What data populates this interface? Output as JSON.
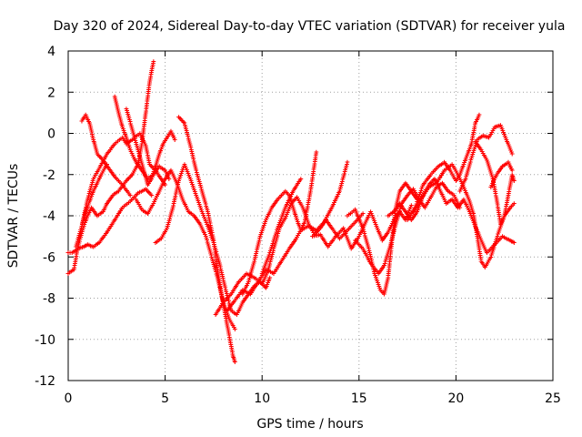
{
  "chart_data": {
    "type": "scatter",
    "title": "Day 320 of 2024, Sidereal Day-to-day VTEC variation (SDTVAR) for receiver yula",
    "xlabel": "GPS time / hours",
    "ylabel": "SDTVAR / TECUs",
    "xlim": [
      0,
      25
    ],
    "ylim": [
      -12,
      4
    ],
    "xticks": [
      0,
      5,
      10,
      15,
      20,
      25
    ],
    "yticks": [
      -12,
      -10,
      -8,
      -6,
      -4,
      -2,
      0,
      2,
      4
    ],
    "grid": true,
    "marker": "+",
    "marker_color": "#ff0000",
    "series": [
      {
        "name": "trace-1",
        "x": [
          0.0,
          0.2,
          0.5,
          0.8,
          1.0,
          1.3,
          1.6,
          2.0,
          2.4,
          2.8,
          3.2,
          3.6,
          4.0,
          4.3
        ],
        "y": [
          -5.8,
          -5.8,
          -5.6,
          -5.5,
          -5.4,
          -5.5,
          -5.3,
          -4.8,
          -4.2,
          -3.6,
          -3.3,
          -2.9,
          -2.7,
          -3.0
        ]
      },
      {
        "name": "trace-2",
        "x": [
          0.0,
          0.3,
          0.5,
          0.7,
          0.9,
          1.1,
          1.3,
          1.5,
          1.7,
          2.0
        ],
        "y": [
          -6.8,
          -6.6,
          -5.5,
          -4.5,
          -3.8,
          -3.3,
          -2.8,
          -2.4,
          -2.0,
          -1.5
        ]
      },
      {
        "name": "trace-3",
        "x": [
          0.7,
          0.9,
          1.1,
          1.3,
          1.5,
          1.8,
          2.1,
          2.4,
          2.8,
          3.2
        ],
        "y": [
          0.6,
          0.9,
          0.5,
          -0.3,
          -1.0,
          -1.3,
          -1.7,
          -2.1,
          -2.5,
          -3.0
        ]
      },
      {
        "name": "trace-4",
        "x": [
          0.5,
          0.8,
          1.0,
          1.2,
          1.5,
          1.8,
          2.0,
          2.3,
          2.6,
          3.0,
          3.3,
          3.6,
          3.8,
          4.0,
          4.2,
          4.4
        ],
        "y": [
          -5.5,
          -4.5,
          -4.0,
          -3.6,
          -4.0,
          -3.8,
          -3.4,
          -3.0,
          -2.8,
          -2.3,
          -2.0,
          -1.5,
          -0.5,
          1.0,
          2.5,
          3.5
        ]
      },
      {
        "name": "trace-5",
        "x": [
          0.4,
          0.7,
          1.0,
          1.3,
          1.6,
          2.0,
          2.4,
          2.8,
          3.0,
          3.3,
          3.7,
          4.0,
          4.2,
          4.5,
          4.8,
          5.0
        ],
        "y": [
          -5.5,
          -4.5,
          -3.2,
          -2.2,
          -1.7,
          -1.0,
          -0.5,
          -0.2,
          -0.5,
          -0.3,
          0.0,
          -0.6,
          -1.5,
          -1.8,
          -2.2,
          -2.5
        ]
      },
      {
        "name": "trace-6",
        "x": [
          2.4,
          2.6,
          2.8,
          3.0,
          3.2,
          3.5,
          3.8,
          4.1,
          4.4,
          4.7,
          5.0,
          5.2
        ],
        "y": [
          1.8,
          1.0,
          0.3,
          -0.2,
          -0.8,
          -1.4,
          -1.8,
          -2.2,
          -2.0,
          -1.6,
          -1.8,
          -2.2
        ]
      },
      {
        "name": "trace-7",
        "x": [
          3.0,
          3.3,
          3.6,
          3.9,
          4.1,
          4.3,
          4.5,
          4.7,
          4.9,
          5.1,
          5.3,
          5.5
        ],
        "y": [
          1.2,
          0.2,
          -0.8,
          -1.8,
          -2.5,
          -2.2,
          -1.6,
          -1.0,
          -0.5,
          -0.2,
          0.1,
          -0.3
        ]
      },
      {
        "name": "trace-8",
        "x": [
          3.5,
          3.8,
          4.1,
          4.4,
          4.7,
          5.0,
          5.3,
          5.6,
          5.9,
          6.2,
          6.5,
          6.8,
          7.1,
          7.4,
          7.7,
          8.0,
          8.3,
          8.6
        ],
        "y": [
          -3.2,
          -3.7,
          -3.9,
          -3.4,
          -2.8,
          -2.2,
          -1.8,
          -2.4,
          -3.2,
          -3.8,
          -4.0,
          -4.4,
          -5.0,
          -6.0,
          -7.0,
          -8.2,
          -9.0,
          -9.5
        ]
      },
      {
        "name": "trace-9",
        "x": [
          4.5,
          4.8,
          5.1,
          5.4,
          5.7,
          6.0,
          6.3,
          6.6,
          6.9,
          7.2,
          7.5,
          7.8,
          8.1,
          8.4,
          8.7,
          9.0,
          9.3,
          9.6,
          9.9,
          10.2,
          10.4
        ],
        "y": [
          -5.3,
          -5.1,
          -4.6,
          -3.6,
          -2.3,
          -1.5,
          -2.2,
          -3.0,
          -3.8,
          -4.5,
          -5.3,
          -6.3,
          -7.5,
          -8.6,
          -8.8,
          -8.2,
          -7.8,
          -7.4,
          -7.2,
          -7.5,
          -7.0
        ]
      },
      {
        "name": "trace-10",
        "x": [
          5.7,
          6.0,
          6.3,
          6.6,
          6.9,
          7.2,
          7.5,
          7.7,
          7.9,
          8.1,
          8.3,
          8.5,
          8.6
        ],
        "y": [
          0.8,
          0.5,
          -0.6,
          -1.8,
          -2.8,
          -3.8,
          -5.2,
          -6.6,
          -7.8,
          -8.8,
          -9.8,
          -10.8,
          -11.1
        ]
      },
      {
        "name": "trace-11",
        "x": [
          7.6,
          8.0,
          8.4,
          8.8,
          9.2,
          9.6,
          10.0,
          10.3,
          10.6,
          10.9,
          11.2,
          11.5,
          11.8,
          12.1,
          12.4,
          12.7,
          13.0,
          13.3,
          13.6,
          14.0,
          14.4,
          14.8,
          15.2
        ],
        "y": [
          -8.8,
          -8.2,
          -7.8,
          -7.2,
          -6.8,
          -7.0,
          -7.3,
          -6.7,
          -5.6,
          -4.6,
          -4.1,
          -3.4,
          -3.1,
          -3.6,
          -4.4,
          -4.9,
          -4.6,
          -4.2,
          -4.6,
          -5.1,
          -4.7,
          -4.3,
          -3.9
        ]
      },
      {
        "name": "trace-12",
        "x": [
          8.2,
          8.6,
          9.0,
          9.4,
          9.8,
          10.2,
          10.6,
          11.0,
          11.4,
          11.7,
          12.0,
          12.4,
          12.8,
          13.2,
          13.6,
          14.0,
          14.4
        ],
        "y": [
          -8.6,
          -8.1,
          -7.6,
          -7.8,
          -7.2,
          -6.6,
          -6.8,
          -6.2,
          -5.6,
          -5.2,
          -4.7,
          -4.5,
          -4.7,
          -4.3,
          -3.6,
          -2.8,
          -1.4
        ]
      },
      {
        "name": "trace-13",
        "x": [
          9.0,
          9.3,
          9.6,
          9.9,
          10.2,
          10.5,
          10.8,
          11.0,
          11.2,
          11.4,
          11.6,
          11.8,
          12.0,
          12.2,
          12.5,
          12.8
        ],
        "y": [
          -7.8,
          -7.2,
          -6.2,
          -5.0,
          -4.2,
          -3.6,
          -3.2,
          -3.0,
          -2.8,
          -3.0,
          -3.6,
          -4.2,
          -4.7,
          -4.3,
          -2.8,
          -0.9
        ]
      },
      {
        "name": "trace-14",
        "x": [
          10.0,
          10.4,
          10.8,
          11.2,
          11.6,
          12.0
        ],
        "y": [
          -6.8,
          -5.8,
          -4.6,
          -3.6,
          -2.8,
          -2.2
        ]
      },
      {
        "name": "trace-15",
        "x": [
          12.6,
          13.0,
          13.4,
          13.8,
          14.2,
          14.6,
          15.0,
          15.3,
          15.6,
          15.9,
          16.2,
          16.5,
          16.8,
          17.1,
          17.4,
          17.7
        ],
        "y": [
          -5.0,
          -4.9,
          -5.5,
          -5.0,
          -4.6,
          -5.6,
          -5.0,
          -4.4,
          -3.8,
          -4.5,
          -5.2,
          -4.8,
          -4.2,
          -3.8,
          -4.2,
          -3.5
        ]
      },
      {
        "name": "trace-16",
        "x": [
          14.4,
          14.8,
          15.2,
          15.5,
          15.8,
          16.1,
          16.3,
          16.5,
          16.7,
          16.9,
          17.1,
          17.4,
          17.7,
          18.0
        ],
        "y": [
          -4.0,
          -3.7,
          -4.6,
          -5.6,
          -6.8,
          -7.6,
          -7.8,
          -7.0,
          -5.2,
          -3.6,
          -2.8,
          -2.4,
          -2.8,
          -3.2
        ]
      },
      {
        "name": "trace-17",
        "x": [
          14.8,
          15.2,
          15.6,
          16.0,
          16.3,
          16.6,
          16.9,
          17.2,
          17.5,
          17.8,
          18.1,
          18.4,
          18.7,
          19.0,
          19.3,
          19.6,
          19.9,
          20.2
        ],
        "y": [
          -5.2,
          -5.6,
          -6.3,
          -6.8,
          -6.4,
          -5.5,
          -4.4,
          -3.4,
          -3.0,
          -2.7,
          -3.2,
          -3.6,
          -3.1,
          -2.6,
          -2.4,
          -2.8,
          -3.0,
          -3.6
        ]
      },
      {
        "name": "trace-18",
        "x": [
          16.5,
          16.8,
          17.1,
          17.4,
          17.7,
          18.0,
          18.3,
          18.6,
          18.9,
          19.2,
          19.5,
          19.8,
          20.1,
          20.4,
          20.7,
          21.0,
          21.3,
          21.6,
          22.0,
          22.4,
          22.8,
          23.0
        ],
        "y": [
          -4.0,
          -3.8,
          -3.4,
          -3.8,
          -4.2,
          -3.8,
          -3.0,
          -2.5,
          -2.2,
          -2.8,
          -3.4,
          -3.2,
          -3.6,
          -3.2,
          -3.8,
          -4.5,
          -5.2,
          -5.8,
          -5.4,
          -5.0,
          -5.2,
          -5.3
        ]
      },
      {
        "name": "trace-19",
        "x": [
          17.8,
          18.2,
          18.6,
          19.0,
          19.4,
          19.8,
          20.1,
          20.4,
          20.7,
          20.9,
          21.1,
          21.3,
          21.5,
          21.8,
          22.2,
          22.5,
          22.8,
          23.0
        ],
        "y": [
          -3.8,
          -3.2,
          -2.6,
          -2.4,
          -1.8,
          -1.5,
          -2.0,
          -2.6,
          -3.3,
          -3.9,
          -5.0,
          -6.2,
          -6.5,
          -6.0,
          -4.8,
          -4.0,
          -3.6,
          -3.4
        ]
      },
      {
        "name": "trace-20",
        "x": [
          17.5,
          17.9,
          18.3,
          18.7,
          19.1,
          19.4,
          19.7,
          20.0,
          20.2,
          20.4,
          20.6,
          20.8,
          21.0,
          21.2
        ],
        "y": [
          -4.2,
          -3.6,
          -2.5,
          -2.0,
          -1.6,
          -1.4,
          -1.8,
          -2.3,
          -2.0,
          -1.5,
          -1.0,
          -0.5,
          0.5,
          0.9
        ]
      },
      {
        "name": "trace-21",
        "x": [
          20.2,
          20.5,
          20.8,
          21.1,
          21.4,
          21.7,
          22.0,
          22.3,
          22.6,
          22.9
        ],
        "y": [
          -2.8,
          -2.2,
          -1.2,
          -0.3,
          -0.1,
          -0.2,
          0.3,
          0.4,
          -0.3,
          -1.0
        ]
      },
      {
        "name": "trace-22",
        "x": [
          21.0,
          21.3,
          21.6,
          21.9,
          22.1,
          22.3,
          22.5,
          22.7,
          22.9,
          23.0
        ],
        "y": [
          -0.4,
          -0.8,
          -1.3,
          -2.2,
          -3.2,
          -4.4,
          -4.0,
          -3.0,
          -2.0,
          -2.3
        ]
      },
      {
        "name": "trace-23",
        "x": [
          21.8,
          22.1,
          22.4,
          22.7,
          22.9
        ],
        "y": [
          -2.6,
          -2.0,
          -1.6,
          -1.4,
          -1.8
        ]
      }
    ]
  }
}
